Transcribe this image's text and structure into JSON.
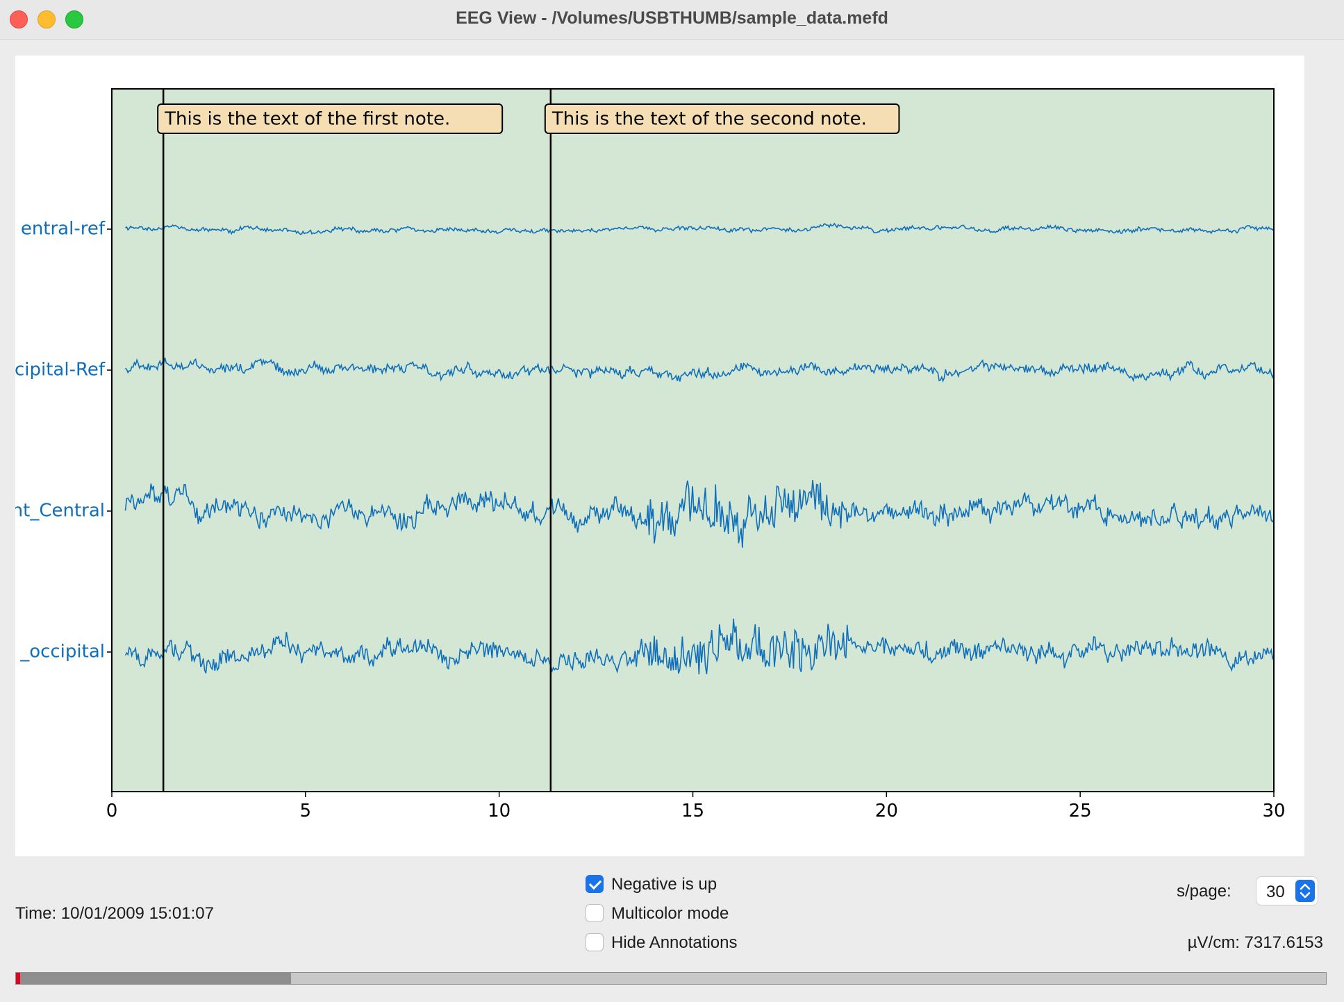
{
  "window": {
    "title": "EEG View - /Volumes/USBTHUMB/sample_data.mefd"
  },
  "chart_data": {
    "type": "line",
    "xlabel": "",
    "ylabel": "",
    "xlim": [
      0,
      30
    ],
    "xticks": [
      "0",
      "5",
      "10",
      "15",
      "20",
      "25",
      "30"
    ],
    "background_color": "#d4e7d4",
    "line_color": "#0f6fba",
    "channels": [
      {
        "label": "entral-ref",
        "amplitude": 0.25,
        "seed": 11
      },
      {
        "label": "cipital-Ref",
        "amplitude": 0.55,
        "seed": 23
      },
      {
        "label": "nt_Central",
        "amplitude": 1.2,
        "seed": 37
      },
      {
        "label": "_occipital",
        "amplitude": 1.1,
        "seed": 51
      }
    ],
    "annotations": [
      {
        "time": 1.33,
        "text": "This is the text of the first note."
      },
      {
        "time": 11.33,
        "text": "This is the text of the second note."
      }
    ],
    "annotation_color": "#f5deb3"
  },
  "controls": {
    "negative_is_up": {
      "label": "Negative is up",
      "checked": true
    },
    "multicolor_mode": {
      "label": "Multicolor mode",
      "checked": false
    },
    "hide_annotations": {
      "label": "Hide Annotations",
      "checked": false
    },
    "time_label": "Time: 10/01/2009 15:01:07",
    "spage_label": "s/page:",
    "spage_value": "30",
    "uv_label": "µV/cm: 7317.6153"
  },
  "scrollbar": {
    "position_fraction": 0.0,
    "thumb_fraction": 0.21
  }
}
